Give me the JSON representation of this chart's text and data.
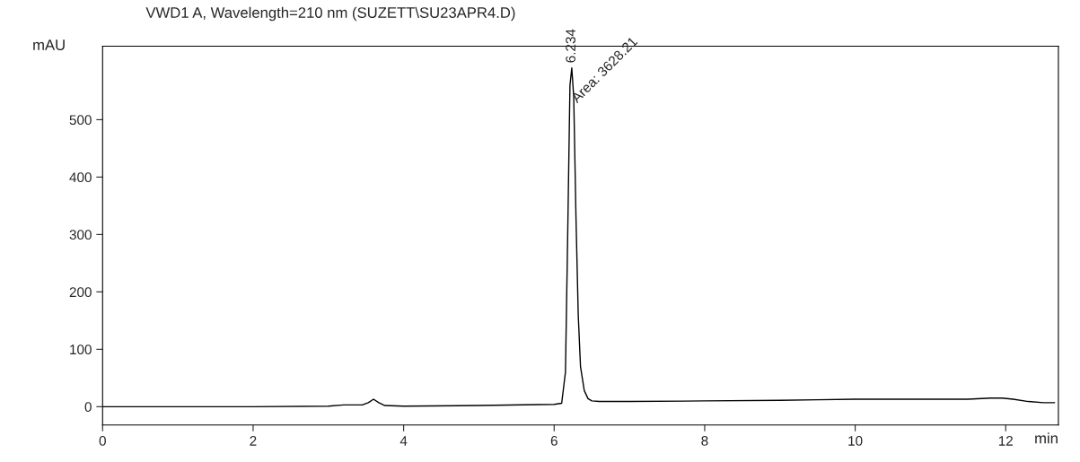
{
  "chart_data": {
    "type": "line",
    "title": "VWD1 A, Wavelength=210 nm (SUZETT\\SU23APR4.D)",
    "xlabel": "min",
    "ylabel": "mAU",
    "x": [
      0,
      1,
      2,
      3,
      3.2,
      3.45,
      3.53,
      3.6,
      3.67,
      3.75,
      4,
      5,
      6,
      6.1,
      6.15,
      6.18,
      6.21,
      6.234,
      6.26,
      6.29,
      6.32,
      6.35,
      6.4,
      6.45,
      6.5,
      6.6,
      7,
      8,
      9,
      9.5,
      10,
      11,
      11.5,
      11.8,
      11.95,
      12.1,
      12.3,
      12.5,
      12.65
    ],
    "series": [
      {
        "color": "#000000",
        "values": [
          0,
          0,
          0,
          1,
          3,
          3,
          7,
          13,
          7,
          2,
          1,
          2,
          4,
          6,
          60,
          300,
          560,
          590,
          540,
          330,
          160,
          70,
          28,
          14,
          10,
          9,
          9,
          10,
          11,
          12,
          13,
          13,
          13,
          15,
          15,
          13,
          9,
          7,
          7
        ]
      }
    ],
    "annotations": [
      {
        "text": "6.234",
        "x": 6.234,
        "y": 590
      },
      {
        "text": "Area: 3628.21",
        "x": 6.234,
        "y": 590
      }
    ],
    "xlim": [
      0,
      12.7
    ],
    "ylim": [
      -32,
      628
    ],
    "xticks": [
      0,
      2,
      4,
      6,
      8,
      10,
      12
    ],
    "yticks": [
      0,
      100,
      200,
      300,
      400,
      500
    ],
    "grid": false,
    "line_style": "solid",
    "marker": "none"
  }
}
